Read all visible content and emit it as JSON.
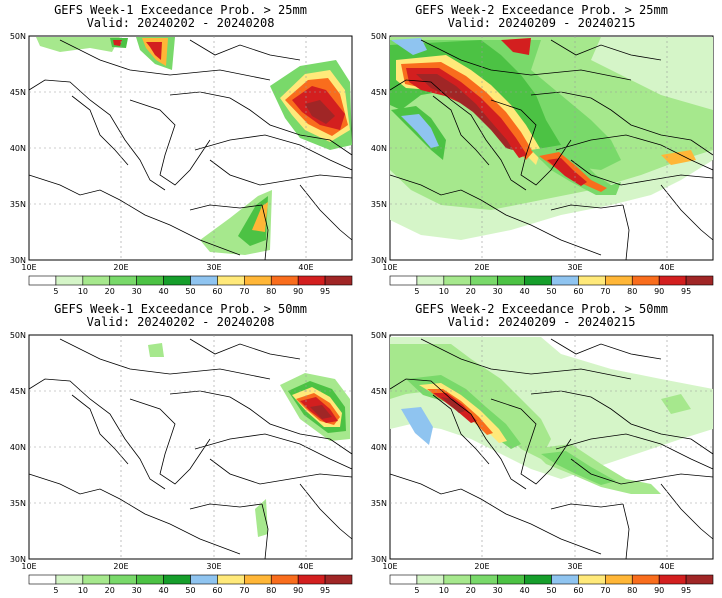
{
  "legend": {
    "thresholds": [
      "5",
      "10",
      "20",
      "30",
      "40",
      "50",
      "60",
      "70",
      "80",
      "90",
      "95"
    ],
    "colors": [
      "#ffffff",
      "#d5f5c8",
      "#a6e88d",
      "#79d96a",
      "#4cc244",
      "#169e2b",
      "#8fc4f0",
      "#ffe97a",
      "#ffb637",
      "#f96d1d",
      "#d31f1f",
      "#a02626"
    ]
  },
  "axes": {
    "lon_labels": [
      "10E",
      "20E",
      "30E",
      "40E"
    ],
    "lat_labels": [
      "50N",
      "45N",
      "40N",
      "35N",
      "30N"
    ]
  },
  "panels": [
    {
      "title": "GEFS Week-1 Exceedance Prob. > 25mm",
      "valid": "Valid: 20240202 - 20240208"
    },
    {
      "title": "GEFS Week-2 Exceedance Prob. > 25mm",
      "valid": "Valid: 20240209 - 20240215"
    },
    {
      "title": "GEFS Week-1 Exceedance Prob. > 50mm",
      "valid": "Valid: 20240202 - 20240208"
    },
    {
      "title": "GEFS Week-2 Exceedance Prob. > 50mm",
      "valid": "Valid: 20240209 - 20240215"
    }
  ]
}
